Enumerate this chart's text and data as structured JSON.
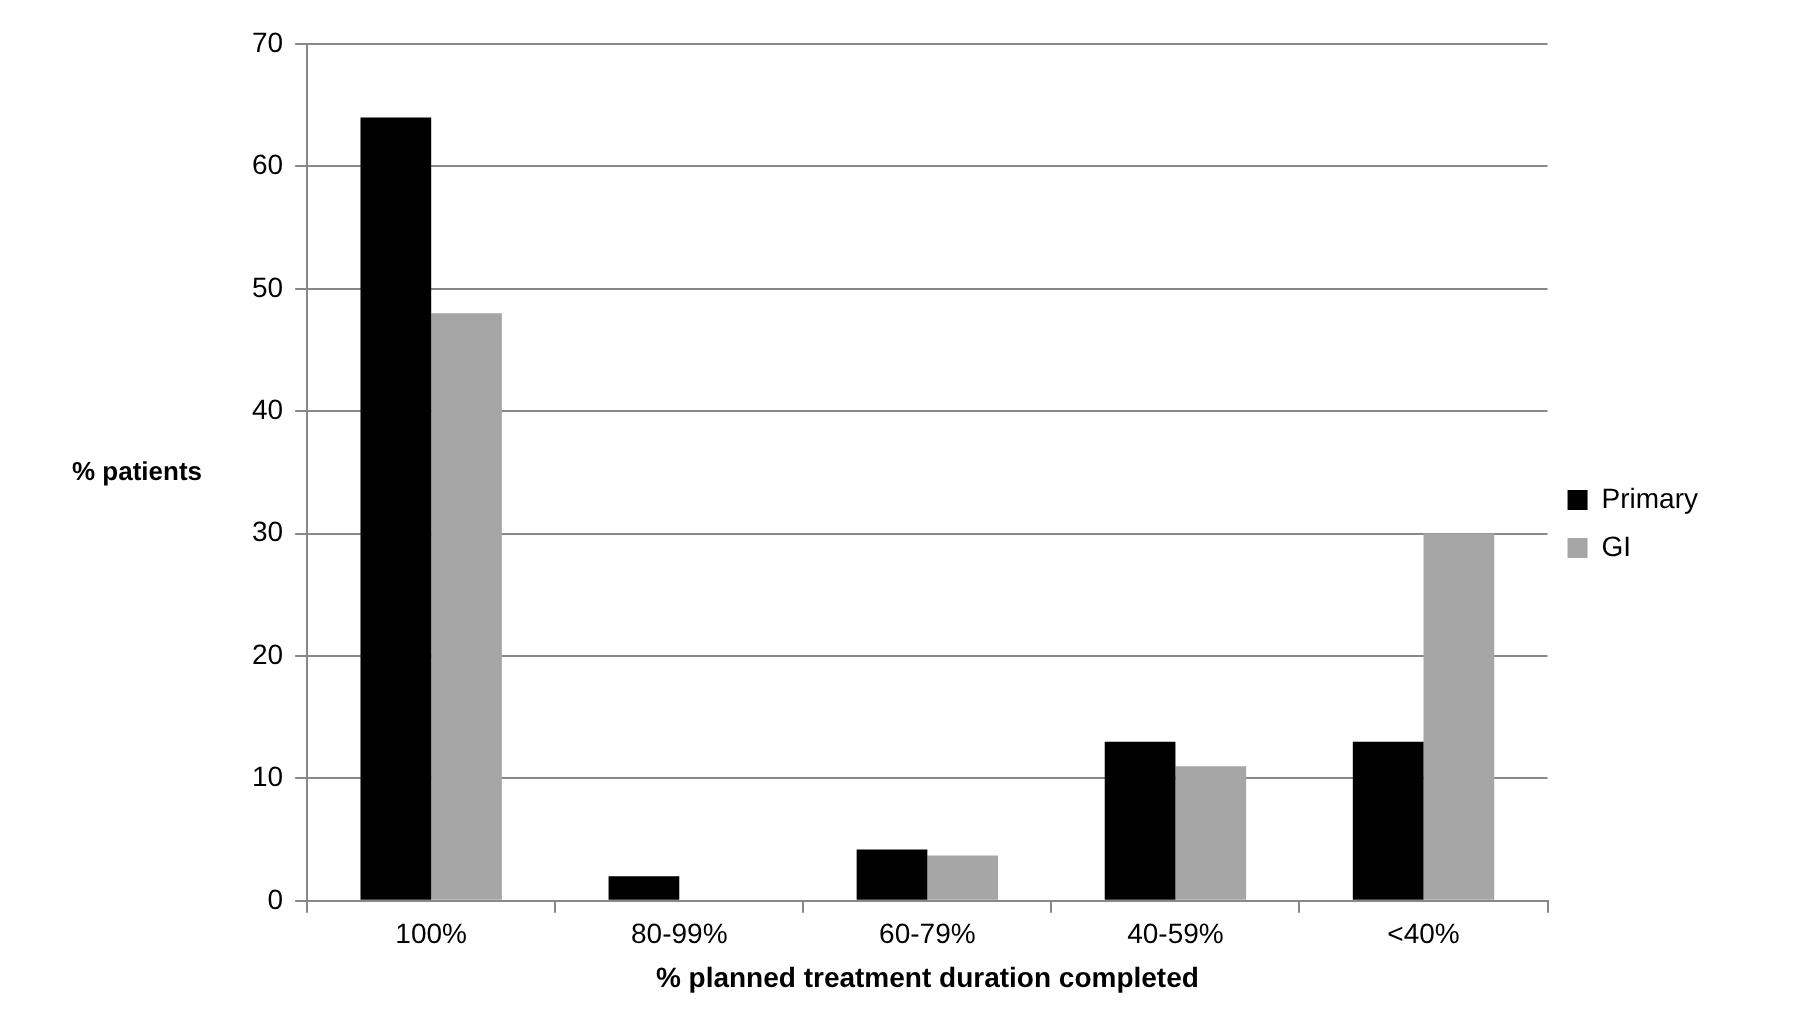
{
  "chart_data": {
    "type": "bar",
    "xlabel": "% planned treatment duration completed",
    "ylabel": "% patients",
    "categories": [
      "100%",
      "80-99%",
      "60-79%",
      "40-59%",
      "<40%"
    ],
    "series": [
      {
        "name": "Primary",
        "color": "#000000",
        "values": [
          64,
          2,
          4.2,
          13,
          13
        ]
      },
      {
        "name": "GI",
        "color": "#a6a6a6",
        "values": [
          48,
          0,
          3.7,
          11,
          30
        ]
      }
    ],
    "ylim": [
      0,
      70
    ],
    "yticks": [
      0,
      10,
      20,
      30,
      40,
      50,
      60,
      70
    ],
    "grid": "y",
    "legend": "right"
  }
}
